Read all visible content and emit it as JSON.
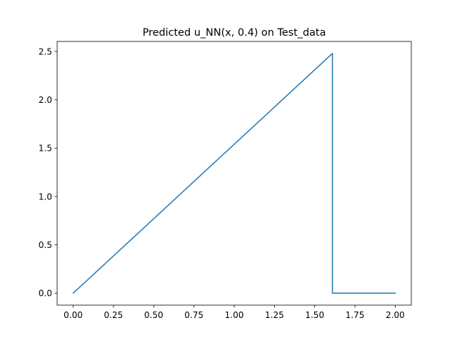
{
  "chart_data": {
    "type": "line",
    "title": "Predicted u_NN(x, 0.4) on Test_data",
    "xlabel": "",
    "ylabel": "",
    "xlim": [
      -0.1,
      2.1
    ],
    "ylim": [
      -0.124,
      2.604
    ],
    "x_ticks": [
      0.0,
      0.25,
      0.5,
      0.75,
      1.0,
      1.25,
      1.5,
      1.75,
      2.0
    ],
    "x_tick_labels": [
      "0.00",
      "0.25",
      "0.50",
      "0.75",
      "1.00",
      "1.25",
      "1.50",
      "1.75",
      "2.00"
    ],
    "y_ticks": [
      0.0,
      0.5,
      1.0,
      1.5,
      2.0,
      2.5
    ],
    "y_tick_labels": [
      "0.0",
      "0.5",
      "1.0",
      "1.5",
      "2.0",
      "2.5"
    ],
    "grid": false,
    "series": [
      {
        "color": "#1f77b4",
        "x": [
          0.0,
          1.61,
          1.61,
          2.0
        ],
        "y": [
          0.0,
          2.48,
          0.0,
          0.0
        ]
      }
    ]
  }
}
